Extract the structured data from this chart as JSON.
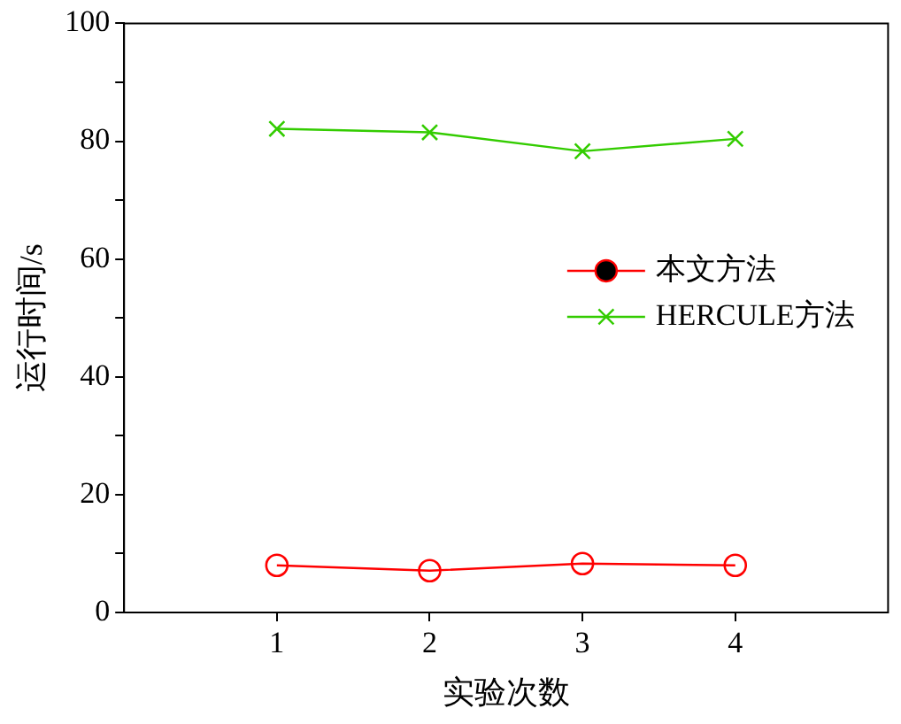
{
  "chart_data": {
    "type": "line",
    "xlabel": "实验次数",
    "ylabel": "运行时间/s",
    "x": [
      1,
      2,
      3,
      4
    ],
    "xlim": [
      0,
      5
    ],
    "xticks": [
      1,
      2,
      3,
      4
    ],
    "ylim": [
      0,
      100
    ],
    "yticks": [
      0,
      {
        "value": 10,
        "label": null
      },
      20,
      {
        "value": 30,
        "label": null
      },
      40,
      {
        "value": 50,
        "label": null
      },
      60,
      {
        "value": 70,
        "label": null
      },
      80,
      {
        "value": 90,
        "label": null
      },
      100
    ],
    "grid": false,
    "legend": "right",
    "series": [
      {
        "name": "本文方法",
        "color": "#ff0000",
        "marker": "circle",
        "values": [
          8.0,
          7.1,
          8.3,
          8.0
        ]
      },
      {
        "name": "HERCULE方法",
        "color": "#33cc00",
        "marker": "cross",
        "values": [
          82.1,
          81.5,
          78.3,
          80.4
        ]
      }
    ]
  }
}
